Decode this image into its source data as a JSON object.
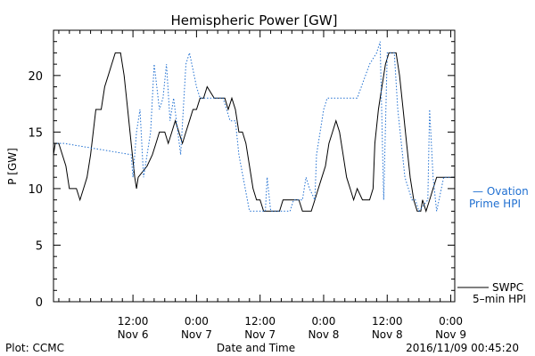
{
  "chart_data": {
    "type": "line",
    "title": "Hemispheric Power [GW]",
    "xlabel": "Date and Time",
    "ylabel": "P [GW]",
    "x_range": [
      "2016-11-05T21:00",
      "2016-11-09T00:45"
    ],
    "ylim": [
      0,
      24
    ],
    "y_ticks": [
      0,
      5,
      10,
      15,
      20
    ],
    "x_ticks": [
      {
        "t": "2016-11-06T12:00",
        "line1": "12:00",
        "line2": "Nov 6"
      },
      {
        "t": "2016-11-07T00:00",
        "line1": "0:00",
        "line2": "Nov 7"
      },
      {
        "t": "2016-11-07T12:00",
        "line1": "12:00",
        "line2": "Nov 7"
      },
      {
        "t": "2016-11-08T00:00",
        "line1": "0:00",
        "line2": "Nov 8"
      },
      {
        "t": "2016-11-08T12:00",
        "line1": "12:00",
        "line2": "Nov 8"
      },
      {
        "t": "2016-11-09T00:00",
        "line1": "0:00",
        "line2": "Nov 9"
      }
    ],
    "series": [
      {
        "name": "SWPC 5-min HPI",
        "color": "#000000",
        "style": "solid",
        "points": [
          [
            "2016-11-05T21:00",
            13
          ],
          [
            "2016-11-05T21:20",
            14
          ],
          [
            "2016-11-05T22:00",
            14
          ],
          [
            "2016-11-05T23:20",
            12
          ],
          [
            "2016-11-06T00:00",
            10
          ],
          [
            "2016-11-06T01:20",
            10
          ],
          [
            "2016-11-06T02:00",
            9
          ],
          [
            "2016-11-06T02:40",
            10
          ],
          [
            "2016-11-06T03:20",
            11
          ],
          [
            "2016-11-06T04:00",
            13
          ],
          [
            "2016-11-06T05:00",
            17
          ],
          [
            "2016-11-06T06:00",
            17
          ],
          [
            "2016-11-06T06:40",
            19
          ],
          [
            "2016-11-06T07:20",
            20
          ],
          [
            "2016-11-06T08:00",
            21
          ],
          [
            "2016-11-06T08:40",
            22
          ],
          [
            "2016-11-06T09:40",
            22
          ],
          [
            "2016-11-06T10:20",
            20
          ],
          [
            "2016-11-06T11:00",
            17
          ],
          [
            "2016-11-06T11:40",
            14
          ],
          [
            "2016-11-06T12:20",
            11
          ],
          [
            "2016-11-06T12:40",
            10
          ],
          [
            "2016-11-06T13:00",
            11
          ],
          [
            "2016-11-06T14:40",
            12
          ],
          [
            "2016-11-06T15:40",
            13
          ],
          [
            "2016-11-06T16:20",
            14
          ],
          [
            "2016-11-06T17:00",
            15
          ],
          [
            "2016-11-06T18:00",
            15
          ],
          [
            "2016-11-06T18:40",
            14
          ],
          [
            "2016-11-06T19:20",
            15
          ],
          [
            "2016-11-06T20:00",
            16
          ],
          [
            "2016-11-06T20:40",
            15
          ],
          [
            "2016-11-06T21:20",
            14
          ],
          [
            "2016-11-06T22:00",
            15
          ],
          [
            "2016-11-06T22:40",
            16
          ],
          [
            "2016-11-06T23:20",
            17
          ],
          [
            "2016-11-07T00:00",
            17
          ],
          [
            "2016-11-07T00:40",
            18
          ],
          [
            "2016-11-07T01:20",
            18
          ],
          [
            "2016-11-07T02:00",
            19
          ],
          [
            "2016-11-07T03:20",
            18
          ],
          [
            "2016-11-07T04:20",
            18
          ],
          [
            "2016-11-07T05:20",
            18
          ],
          [
            "2016-11-07T06:00",
            17
          ],
          [
            "2016-11-07T06:40",
            18
          ],
          [
            "2016-11-07T07:20",
            17
          ],
          [
            "2016-11-07T08:00",
            15
          ],
          [
            "2016-11-07T08:40",
            15
          ],
          [
            "2016-11-07T09:20",
            14
          ],
          [
            "2016-11-07T10:00",
            12
          ],
          [
            "2016-11-07T10:40",
            10
          ],
          [
            "2016-11-07T11:20",
            9
          ],
          [
            "2016-11-07T12:00",
            9
          ],
          [
            "2016-11-07T12:40",
            8
          ],
          [
            "2016-11-07T15:40",
            8
          ],
          [
            "2016-11-07T16:20",
            9
          ],
          [
            "2016-11-07T19:20",
            9
          ],
          [
            "2016-11-07T20:00",
            8
          ],
          [
            "2016-11-07T21:40",
            8
          ],
          [
            "2016-11-07T22:20",
            9
          ],
          [
            "2016-11-07T23:00",
            10
          ],
          [
            "2016-11-07T23:40",
            11
          ],
          [
            "2016-11-08T00:20",
            12
          ],
          [
            "2016-11-08T01:00",
            14
          ],
          [
            "2016-11-08T01:40",
            15
          ],
          [
            "2016-11-08T02:20",
            16
          ],
          [
            "2016-11-08T03:00",
            15
          ],
          [
            "2016-11-08T03:40",
            13
          ],
          [
            "2016-11-08T04:20",
            11
          ],
          [
            "2016-11-08T05:00",
            10
          ],
          [
            "2016-11-08T05:40",
            9
          ],
          [
            "2016-11-08T06:20",
            10
          ],
          [
            "2016-11-08T07:20",
            9
          ],
          [
            "2016-11-08T08:40",
            9
          ],
          [
            "2016-11-08T09:20",
            10
          ],
          [
            "2016-11-08T09:40",
            14
          ],
          [
            "2016-11-08T10:20",
            17
          ],
          [
            "2016-11-08T11:00",
            19
          ],
          [
            "2016-11-08T11:40",
            21
          ],
          [
            "2016-11-08T12:20",
            22
          ],
          [
            "2016-11-08T13:40",
            22
          ],
          [
            "2016-11-08T14:20",
            20
          ],
          [
            "2016-11-08T15:00",
            17
          ],
          [
            "2016-11-08T15:40",
            14
          ],
          [
            "2016-11-08T16:20",
            11
          ],
          [
            "2016-11-08T17:00",
            9
          ],
          [
            "2016-11-08T17:40",
            8
          ],
          [
            "2016-11-08T18:20",
            8
          ],
          [
            "2016-11-08T18:40",
            9
          ],
          [
            "2016-11-08T19:20",
            8
          ],
          [
            "2016-11-08T20:00",
            9
          ],
          [
            "2016-11-08T20:40",
            10
          ],
          [
            "2016-11-08T21:20",
            11
          ],
          [
            "2016-11-09T00:45",
            11
          ]
        ]
      },
      {
        "name": "Ovation Prime HPI",
        "color": "#1f6fd1",
        "style": "dotted",
        "points": [
          [
            "2016-11-05T21:00",
            14
          ],
          [
            "2016-11-05T23:00",
            14
          ],
          [
            "2016-11-06T11:40",
            13
          ],
          [
            "2016-11-06T12:00",
            11
          ],
          [
            "2016-11-06T12:40",
            15
          ],
          [
            "2016-11-06T13:20",
            17
          ],
          [
            "2016-11-06T14:00",
            11
          ],
          [
            "2016-11-06T15:20",
            15
          ],
          [
            "2016-11-06T16:00",
            21
          ],
          [
            "2016-11-06T17:00",
            17
          ],
          [
            "2016-11-06T17:40",
            18
          ],
          [
            "2016-11-06T18:20",
            21
          ],
          [
            "2016-11-06T19:00",
            16
          ],
          [
            "2016-11-06T19:40",
            18
          ],
          [
            "2016-11-06T21:00",
            13
          ],
          [
            "2016-11-06T22:00",
            21
          ],
          [
            "2016-11-06T22:40",
            22
          ],
          [
            "2016-11-07T00:00",
            19
          ],
          [
            "2016-11-07T00:40",
            18
          ],
          [
            "2016-11-07T05:00",
            18
          ],
          [
            "2016-11-07T05:40",
            17
          ],
          [
            "2016-11-07T06:20",
            16
          ],
          [
            "2016-11-07T07:20",
            16
          ],
          [
            "2016-11-07T08:00",
            13
          ],
          [
            "2016-11-07T10:00",
            8
          ],
          [
            "2016-11-07T11:00",
            8
          ],
          [
            "2016-11-07T13:00",
            8
          ],
          [
            "2016-11-07T13:20",
            11
          ],
          [
            "2016-11-07T14:00",
            8
          ],
          [
            "2016-11-07T15:40",
            8
          ],
          [
            "2016-11-07T17:40",
            8
          ],
          [
            "2016-11-07T18:20",
            9
          ],
          [
            "2016-11-07T20:00",
            9
          ],
          [
            "2016-11-07T20:40",
            11
          ],
          [
            "2016-11-07T21:20",
            10
          ],
          [
            "2016-11-07T22:20",
            9
          ],
          [
            "2016-11-07T22:40",
            13
          ],
          [
            "2016-11-08T00:00",
            17
          ],
          [
            "2016-11-08T00:40",
            18
          ],
          [
            "2016-11-08T06:20",
            18
          ],
          [
            "2016-11-08T08:40",
            21
          ],
          [
            "2016-11-08T10:00",
            22
          ],
          [
            "2016-11-08T10:40",
            23
          ],
          [
            "2016-11-08T11:20",
            9
          ],
          [
            "2016-11-08T12:00",
            22
          ],
          [
            "2016-11-08T13:20",
            22
          ],
          [
            "2016-11-08T14:00",
            17
          ],
          [
            "2016-11-08T15:20",
            11
          ],
          [
            "2016-11-08T16:40",
            9
          ],
          [
            "2016-11-08T17:20",
            9
          ],
          [
            "2016-11-08T18:00",
            8
          ],
          [
            "2016-11-08T19:40",
            9
          ],
          [
            "2016-11-08T20:00",
            17
          ],
          [
            "2016-11-08T20:40",
            11
          ],
          [
            "2016-11-08T21:20",
            8
          ],
          [
            "2016-11-08T22:40",
            11
          ],
          [
            "2016-11-09T00:45",
            11
          ]
        ]
      }
    ],
    "legend": {
      "placement": "right",
      "ovation_line1": "— Ovation",
      "ovation_line2": "Prime HPI",
      "swpc_line1": "SWPC",
      "swpc_line2": "5–min HPI"
    }
  },
  "footer": {
    "left": "Plot: CCMC",
    "center": "Date and Time",
    "right": "2016/11/09 00:45:20"
  }
}
